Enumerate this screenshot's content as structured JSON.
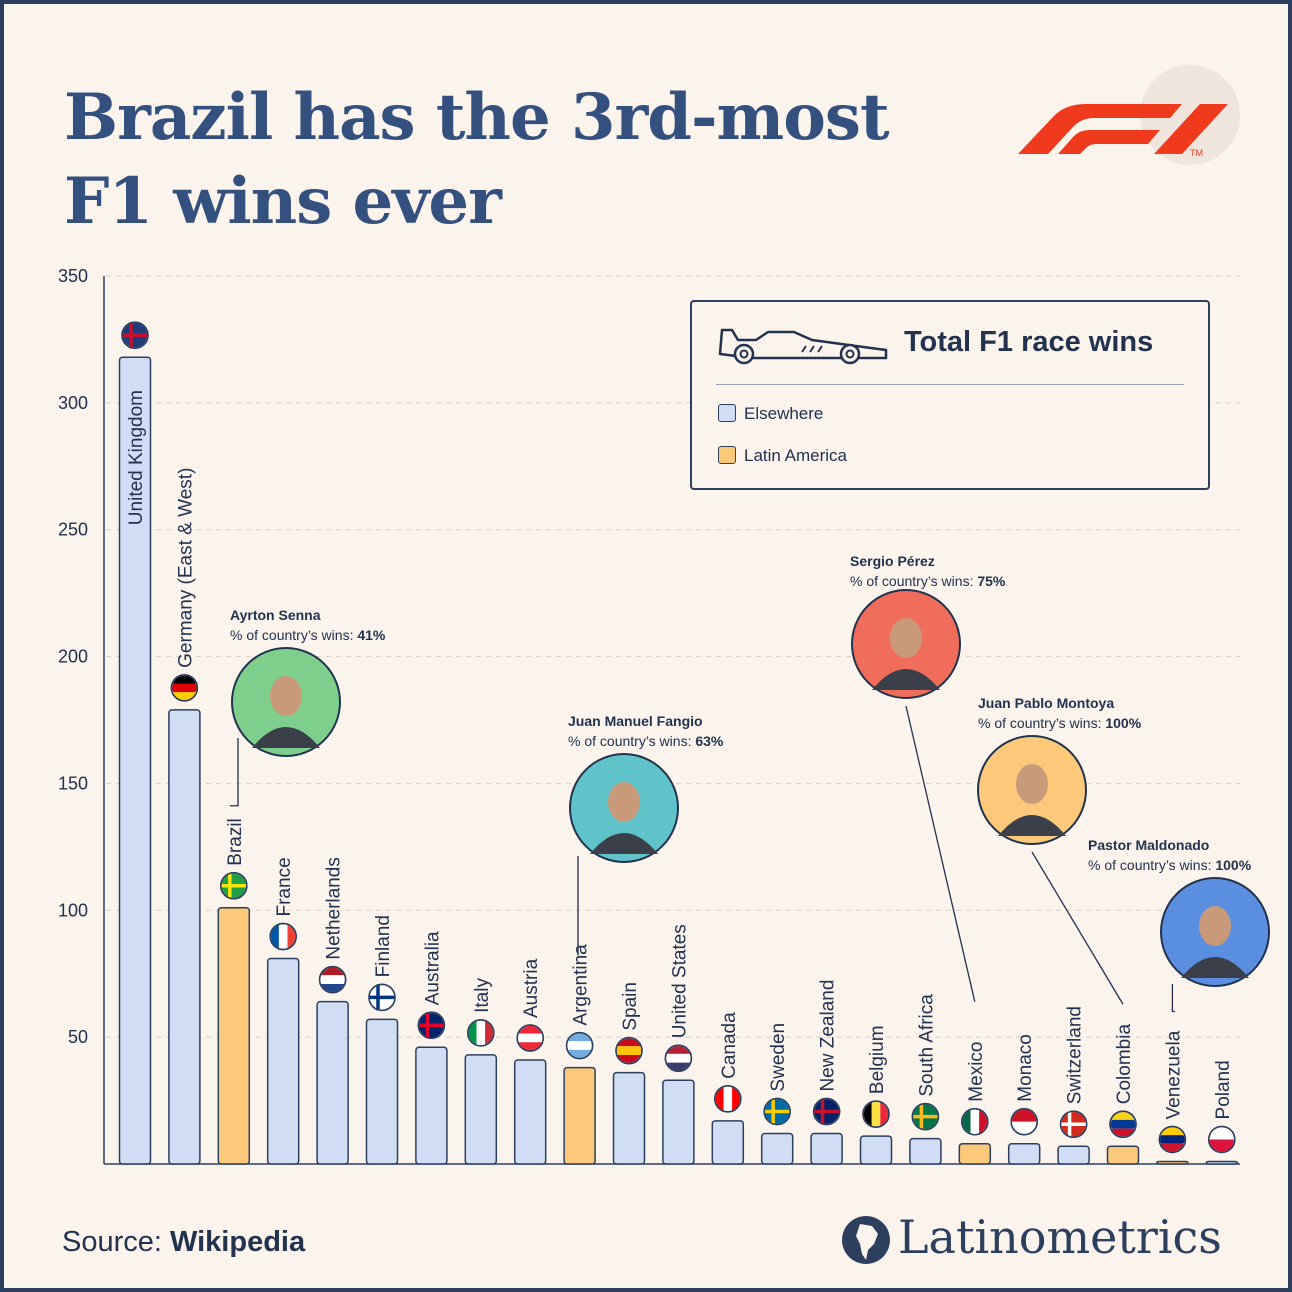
{
  "title_line1": "Brazil has the 3rd-most",
  "title_line2": "F1 wins ever",
  "legend": {
    "title": "Total F1 race wins",
    "items": [
      {
        "label": "Elsewhere",
        "color": "#d0def5"
      },
      {
        "label": "Latin America",
        "color": "#fcc97a"
      }
    ]
  },
  "source_prefix": "Source: ",
  "source_name": "Wikipedia",
  "brand": "Latinometrics",
  "colors": {
    "elsewhere": "#d0def5",
    "latin_america": "#fcc97a",
    "outline": "#2d3f5f",
    "title": "#34507f",
    "f1_red": "#ef3a1e"
  },
  "chart_data": {
    "type": "bar",
    "ylim": [
      0,
      350
    ],
    "yticks": [
      "50",
      "100",
      "150",
      "200",
      "250",
      "300",
      "350"
    ],
    "grid": true,
    "legend_position": "top-right",
    "categories": [
      "United Kingdom",
      "Germany (East & West)",
      "Brazil",
      "France",
      "Netherlands",
      "Finland",
      "Australia",
      "Italy",
      "Austria",
      "Argentina",
      "Spain",
      "United States",
      "Canada",
      "Sweden",
      "New Zealand",
      "Belgium",
      "South Africa",
      "Mexico",
      "Monaco",
      "Switzerland",
      "Colombia",
      "Venezuela",
      "Poland"
    ],
    "values": [
      318,
      179,
      101,
      81,
      64,
      57,
      46,
      43,
      41,
      38,
      36,
      33,
      17,
      12,
      12,
      11,
      10,
      8,
      8,
      7,
      7,
      1,
      1
    ],
    "groups": [
      "Elsewhere",
      "Elsewhere",
      "Latin America",
      "Elsewhere",
      "Elsewhere",
      "Elsewhere",
      "Elsewhere",
      "Elsewhere",
      "Elsewhere",
      "Latin America",
      "Elsewhere",
      "Elsewhere",
      "Elsewhere",
      "Elsewhere",
      "Elsewhere",
      "Elsewhere",
      "Elsewhere",
      "Latin America",
      "Elsewhere",
      "Elsewhere",
      "Latin America",
      "Latin America",
      "Elsewhere"
    ],
    "annotations": [
      {
        "name": "Ayrton Senna",
        "label": "% of country’s wins: ",
        "value": "41%",
        "country": "Brazil",
        "bg": "#7fcf8c"
      },
      {
        "name": "Juan Manuel Fangio",
        "label": "% of country’s wins: ",
        "value": "63%",
        "country": "Argentina",
        "bg": "#5fc3c9"
      },
      {
        "name": "Sergio Pérez",
        "label": "% of country’s wins: ",
        "value": "75%",
        "country": "Mexico",
        "bg": "#ef6d5a"
      },
      {
        "name": "Juan Pablo Montoya",
        "label": "% of country’s wins: ",
        "value": "100%",
        "country": "Colombia",
        "bg": "#fcc97a"
      },
      {
        "name": "Pastor Maldonado",
        "label": "% of country’s wins: ",
        "value": "100%",
        "country": "Venezuela",
        "bg": "#5a8fe0"
      }
    ]
  }
}
